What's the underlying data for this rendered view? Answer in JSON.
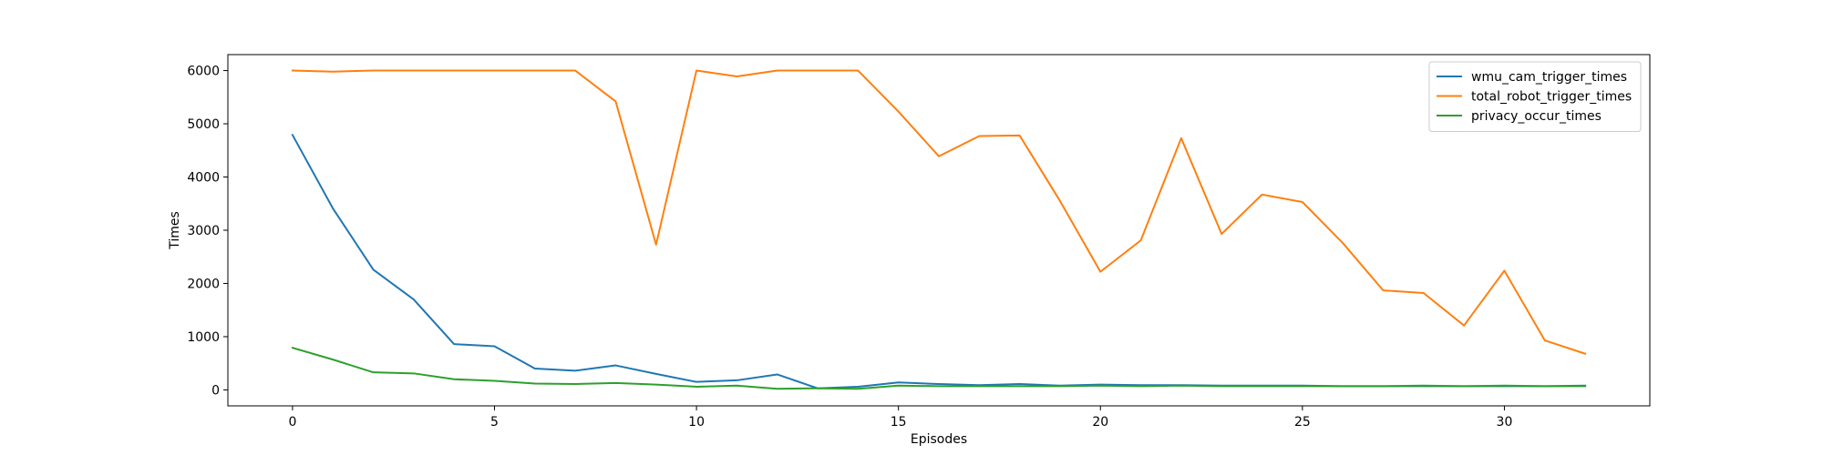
{
  "chart_data": {
    "type": "line",
    "title": "",
    "xlabel": "Episodes",
    "ylabel": "Times",
    "xlim": [
      -1.6,
      33.6
    ],
    "ylim": [
      -300,
      6300
    ],
    "xticks": [
      0,
      5,
      10,
      15,
      20,
      25,
      30
    ],
    "yticks": [
      0,
      1000,
      2000,
      3000,
      4000,
      5000,
      6000
    ],
    "grid": false,
    "legend_position": "top-right",
    "x": [
      0,
      1,
      2,
      3,
      4,
      5,
      6,
      7,
      8,
      9,
      10,
      11,
      12,
      13,
      14,
      15,
      16,
      17,
      18,
      19,
      20,
      21,
      22,
      23,
      24,
      25,
      26,
      27,
      28,
      29,
      30,
      31,
      32
    ],
    "series": [
      {
        "name": "wmu_cam_trigger_times",
        "color": "#1f77b4",
        "values": [
          4790,
          3410,
          2260,
          1700,
          860,
          820,
          400,
          360,
          460,
          300,
          150,
          180,
          290,
          30,
          60,
          140,
          110,
          90,
          110,
          80,
          100,
          90,
          90,
          80,
          80,
          80,
          70,
          70,
          70,
          70,
          70,
          70,
          80
        ]
      },
      {
        "name": "total_robot_trigger_times",
        "color": "#ff7f0e",
        "values": [
          6000,
          5980,
          6000,
          6000,
          6000,
          6000,
          6000,
          6000,
          5420,
          2730,
          6000,
          5890,
          6000,
          6000,
          6000,
          5230,
          4390,
          4770,
          4780,
          3550,
          2220,
          2810,
          4730,
          2930,
          3670,
          3530,
          2760,
          1870,
          1820,
          1210,
          2240,
          930,
          680
        ]
      },
      {
        "name": "privacy_occur_times",
        "color": "#2ca02c",
        "values": [
          790,
          570,
          330,
          310,
          200,
          170,
          120,
          110,
          130,
          100,
          60,
          80,
          20,
          30,
          20,
          80,
          70,
          70,
          70,
          70,
          80,
          70,
          80,
          70,
          70,
          70,
          70,
          70,
          80,
          70,
          80,
          70,
          70
        ]
      }
    ]
  }
}
